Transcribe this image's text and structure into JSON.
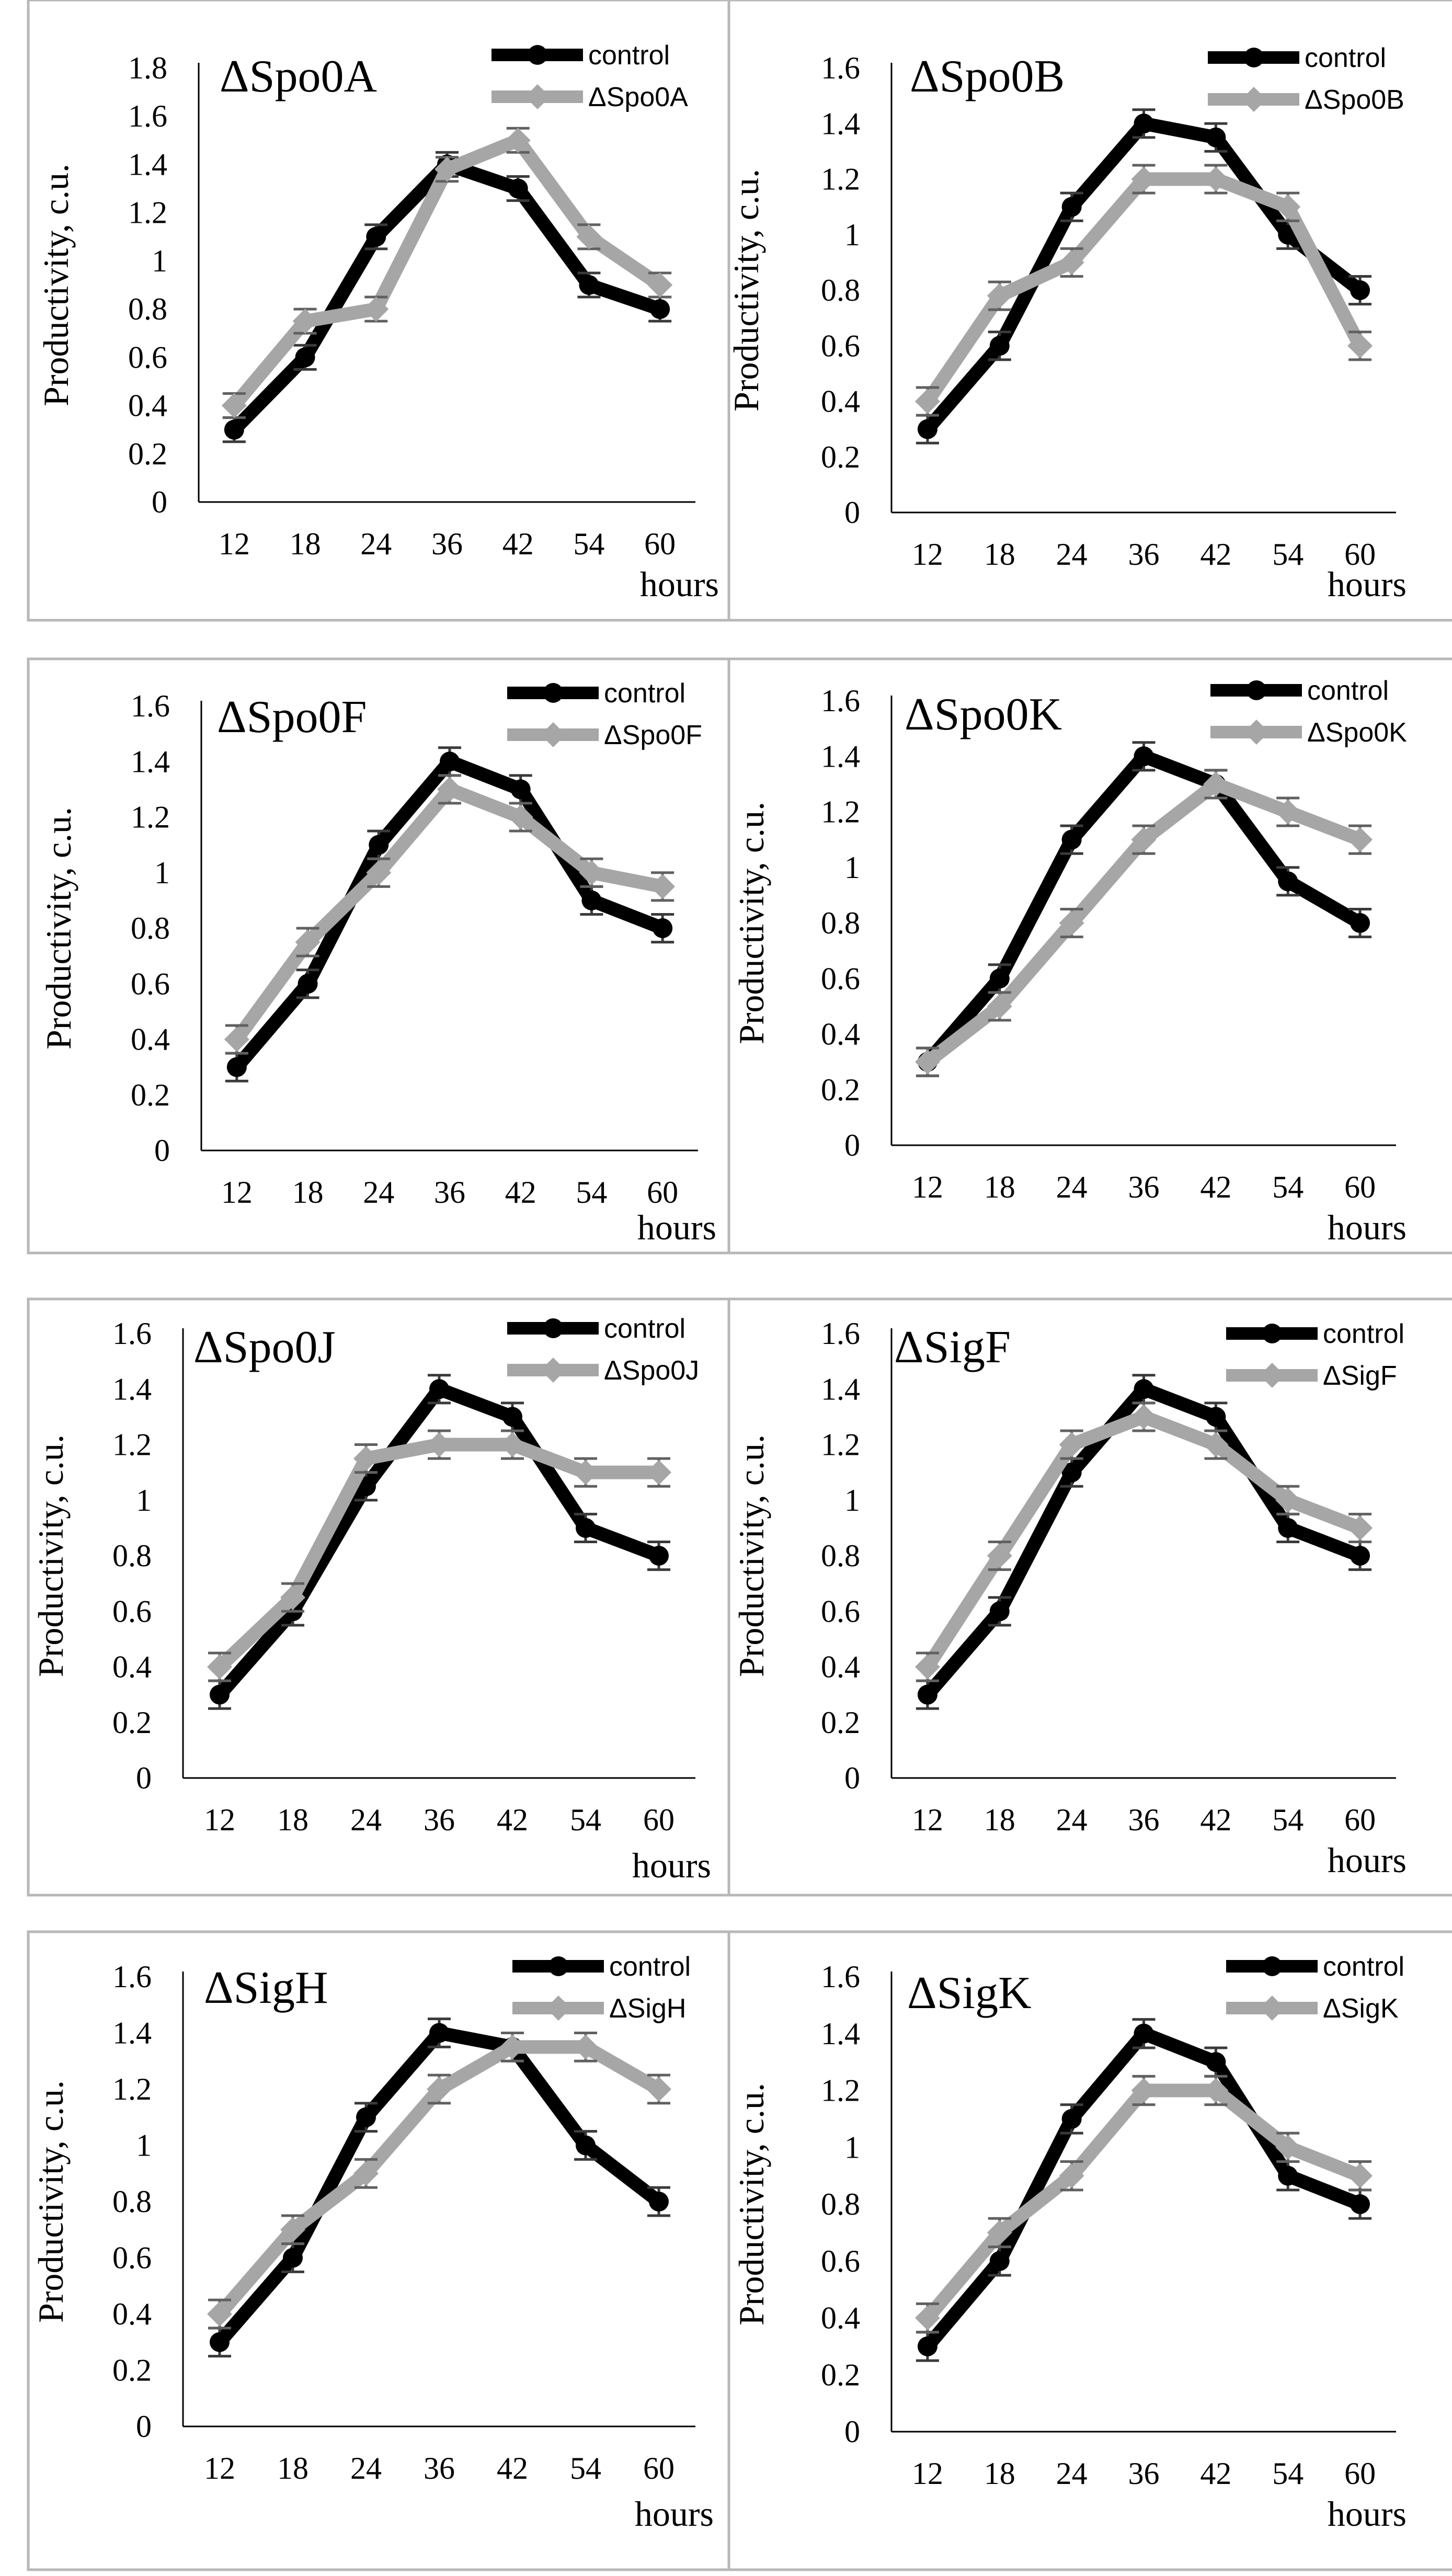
{
  "figure": {
    "panel_border_color": "#b7b7b7",
    "axis_color": "#000000"
  },
  "chart_data": [
    {
      "type": "line",
      "title": "ΔSpo0A",
      "xlabel": "hours",
      "ylabel": "Productivity, c.u.",
      "categories": [
        "12",
        "18",
        "24",
        "36",
        "42",
        "54",
        "60"
      ],
      "ylim": [
        0,
        1.8
      ],
      "yticks": [
        "0",
        "0.2",
        "0.4",
        "0.6",
        "0.8",
        "1",
        "1.2",
        "1.4",
        "1.6",
        "1.8"
      ],
      "legend_position": "top-right",
      "series": [
        {
          "name": "control",
          "color": "#000000",
          "marker": "circle",
          "values": [
            0.3,
            0.6,
            1.1,
            1.4,
            1.3,
            0.9,
            0.8
          ],
          "error": 0.05
        },
        {
          "name": "ΔSpo0A",
          "color": "#a6a6a6",
          "marker": "diamond",
          "values": [
            0.4,
            0.75,
            0.8,
            1.38,
            1.5,
            1.1,
            0.9
          ],
          "error": 0.05
        }
      ]
    },
    {
      "type": "line",
      "title": "ΔSpo0B",
      "xlabel": "hours",
      "ylabel": "Productivity, c.u.",
      "categories": [
        "12",
        "18",
        "24",
        "36",
        "42",
        "54",
        "60"
      ],
      "ylim": [
        0,
        1.6
      ],
      "yticks": [
        "0",
        "0.2",
        "0.4",
        "0.6",
        "0.8",
        "1",
        "1.2",
        "1.4",
        "1.6"
      ],
      "legend_position": "top-right",
      "series": [
        {
          "name": "control",
          "color": "#000000",
          "marker": "circle",
          "values": [
            0.3,
            0.6,
            1.1,
            1.4,
            1.35,
            1.0,
            0.8
          ],
          "error": 0.05
        },
        {
          "name": "ΔSpo0B",
          "color": "#a6a6a6",
          "marker": "diamond",
          "values": [
            0.4,
            0.78,
            0.9,
            1.2,
            1.2,
            1.1,
            0.6
          ],
          "error": 0.05
        }
      ]
    },
    {
      "type": "line",
      "title": "ΔSpo0F",
      "xlabel": "hours",
      "ylabel": "Productivity, c.u.",
      "categories": [
        "12",
        "18",
        "24",
        "36",
        "42",
        "54",
        "60"
      ],
      "ylim": [
        0,
        1.6
      ],
      "yticks": [
        "0",
        "0.2",
        "0.4",
        "0.6",
        "0.8",
        "1",
        "1.2",
        "1.4",
        "1.6"
      ],
      "legend_position": "top-right",
      "series": [
        {
          "name": "control",
          "color": "#000000",
          "marker": "circle",
          "values": [
            0.3,
            0.6,
            1.1,
            1.4,
            1.3,
            0.9,
            0.8
          ],
          "error": 0.05
        },
        {
          "name": "ΔSpo0F",
          "color": "#a6a6a6",
          "marker": "diamond",
          "values": [
            0.4,
            0.75,
            1.0,
            1.3,
            1.2,
            1.0,
            0.95
          ],
          "error": 0.05
        }
      ]
    },
    {
      "type": "line",
      "title": "ΔSpo0K",
      "xlabel": "hours",
      "ylabel": "Productivity, c.u.",
      "categories": [
        "12",
        "18",
        "24",
        "36",
        "42",
        "54",
        "60"
      ],
      "ylim": [
        0,
        1.6
      ],
      "yticks": [
        "0",
        "0.2",
        "0.4",
        "0.6",
        "0.8",
        "1",
        "1.2",
        "1.4",
        "1.6"
      ],
      "legend_position": "top-right",
      "series": [
        {
          "name": "control",
          "color": "#000000",
          "marker": "circle",
          "values": [
            0.3,
            0.6,
            1.1,
            1.4,
            1.3,
            0.95,
            0.8
          ],
          "error": 0.05
        },
        {
          "name": "ΔSpo0K",
          "color": "#a6a6a6",
          "marker": "diamond",
          "values": [
            0.3,
            0.5,
            0.8,
            1.1,
            1.3,
            1.2,
            1.1
          ],
          "error": 0.05
        }
      ]
    },
    {
      "type": "line",
      "title": "ΔSpo0J",
      "xlabel": "hours",
      "ylabel": "Productivity, c.u.",
      "categories": [
        "12",
        "18",
        "24",
        "36",
        "42",
        "54",
        "60"
      ],
      "ylim": [
        0,
        1.6
      ],
      "yticks": [
        "0",
        "0.2",
        "0.4",
        "0.6",
        "0.8",
        "1",
        "1.2",
        "1.4",
        "1.6"
      ],
      "legend_position": "top-right",
      "series": [
        {
          "name": "control",
          "color": "#000000",
          "marker": "circle",
          "values": [
            0.3,
            0.6,
            1.05,
            1.4,
            1.3,
            0.9,
            0.8
          ],
          "error": 0.05
        },
        {
          "name": "ΔSpo0J",
          "color": "#a6a6a6",
          "marker": "diamond",
          "values": [
            0.4,
            0.65,
            1.15,
            1.2,
            1.2,
            1.1,
            1.1
          ],
          "error": 0.05
        }
      ]
    },
    {
      "type": "line",
      "title": "ΔSigF",
      "xlabel": "hours",
      "ylabel": "Productivity, c.u.",
      "categories": [
        "12",
        "18",
        "24",
        "36",
        "42",
        "54",
        "60"
      ],
      "ylim": [
        0,
        1.6
      ],
      "yticks": [
        "0",
        "0.2",
        "0.4",
        "0.6",
        "0.8",
        "1",
        "1.2",
        "1.4",
        "1.6"
      ],
      "legend_position": "top-right",
      "series": [
        {
          "name": "control",
          "color": "#000000",
          "marker": "circle",
          "values": [
            0.3,
            0.6,
            1.1,
            1.4,
            1.3,
            0.9,
            0.8
          ],
          "error": 0.05
        },
        {
          "name": "ΔSigF",
          "color": "#a6a6a6",
          "marker": "diamond",
          "values": [
            0.4,
            0.8,
            1.2,
            1.3,
            1.2,
            1.0,
            0.9
          ],
          "error": 0.05
        }
      ]
    },
    {
      "type": "line",
      "title": "ΔSigH",
      "xlabel": "hours",
      "ylabel": "Productivity, c.u.",
      "categories": [
        "12",
        "18",
        "24",
        "36",
        "42",
        "54",
        "60"
      ],
      "ylim": [
        0,
        1.6
      ],
      "yticks": [
        "0",
        "0.2",
        "0.4",
        "0.6",
        "0.8",
        "1",
        "1.2",
        "1.4",
        "1.6"
      ],
      "legend_position": "top-right",
      "series": [
        {
          "name": "control",
          "color": "#000000",
          "marker": "circle",
          "values": [
            0.3,
            0.6,
            1.1,
            1.4,
            1.35,
            1.0,
            0.8
          ],
          "error": 0.05
        },
        {
          "name": "ΔSigH",
          "color": "#a6a6a6",
          "marker": "diamond",
          "values": [
            0.4,
            0.7,
            0.9,
            1.2,
            1.35,
            1.35,
            1.2
          ],
          "error": 0.05
        }
      ]
    },
    {
      "type": "line",
      "title": "ΔSigK",
      "xlabel": "hours",
      "ylabel": "Productivity, c.u.",
      "categories": [
        "12",
        "18",
        "24",
        "36",
        "42",
        "54",
        "60"
      ],
      "ylim": [
        0,
        1.6
      ],
      "yticks": [
        "0",
        "0.2",
        "0.4",
        "0.6",
        "0.8",
        "1",
        "1.2",
        "1.4",
        "1.6"
      ],
      "legend_position": "top-right",
      "series": [
        {
          "name": "control",
          "color": "#000000",
          "marker": "circle",
          "values": [
            0.3,
            0.6,
            1.1,
            1.4,
            1.3,
            0.9,
            0.8
          ],
          "error": 0.05
        },
        {
          "name": "ΔSigK",
          "color": "#a6a6a6",
          "marker": "diamond",
          "values": [
            0.4,
            0.7,
            0.9,
            1.2,
            1.2,
            1.0,
            0.9
          ],
          "error": 0.05
        }
      ]
    }
  ]
}
